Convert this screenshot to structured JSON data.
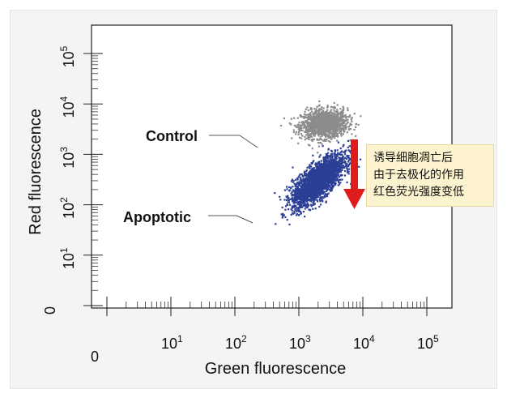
{
  "chart_data": {
    "type": "scatter",
    "xlabel": "Green fluorescence",
    "ylabel": "Red fluorescence",
    "xscale": "log",
    "yscale": "log",
    "xlim": [
      1,
      100000
    ],
    "ylim": [
      1,
      100000
    ],
    "x_ticks": [
      {
        "value": 1,
        "base": "0",
        "exp": ""
      },
      {
        "value": 10,
        "base": "10",
        "exp": "1"
      },
      {
        "value": 100,
        "base": "10",
        "exp": "2"
      },
      {
        "value": 1000,
        "base": "10",
        "exp": "3"
      },
      {
        "value": 10000,
        "base": "10",
        "exp": "4"
      },
      {
        "value": 100000,
        "base": "10",
        "exp": "5"
      }
    ],
    "y_ticks": [
      {
        "value": 1,
        "base": "0",
        "exp": ""
      },
      {
        "value": 10,
        "base": "10",
        "exp": "1"
      },
      {
        "value": 100,
        "base": "10",
        "exp": "2"
      },
      {
        "value": 1000,
        "base": "10",
        "exp": "3"
      },
      {
        "value": 10000,
        "base": "10",
        "exp": "4"
      },
      {
        "value": 100000,
        "base": "10",
        "exp": "5"
      }
    ],
    "series": [
      {
        "name": "Control",
        "color": "#8c8c8c",
        "center": [
          2500,
          4000
        ],
        "spread_decades": [
          0.18,
          0.14
        ],
        "correlation": 0.1,
        "count": 1400
      },
      {
        "name": "Apoptotic",
        "color": "#2c3f96",
        "center": [
          2000,
          300
        ],
        "spread_decades": [
          0.2,
          0.25
        ],
        "correlation": 0.72,
        "count": 2600
      }
    ],
    "annotations": {
      "control_label": "Control",
      "apoptotic_label": "Apoptotic",
      "arrow_color": "#e01b1b",
      "note_lines": [
        "诱导细胞凋亡后",
        "由于去极化的作用",
        "红色荧光强度变低"
      ]
    },
    "grid": false
  }
}
